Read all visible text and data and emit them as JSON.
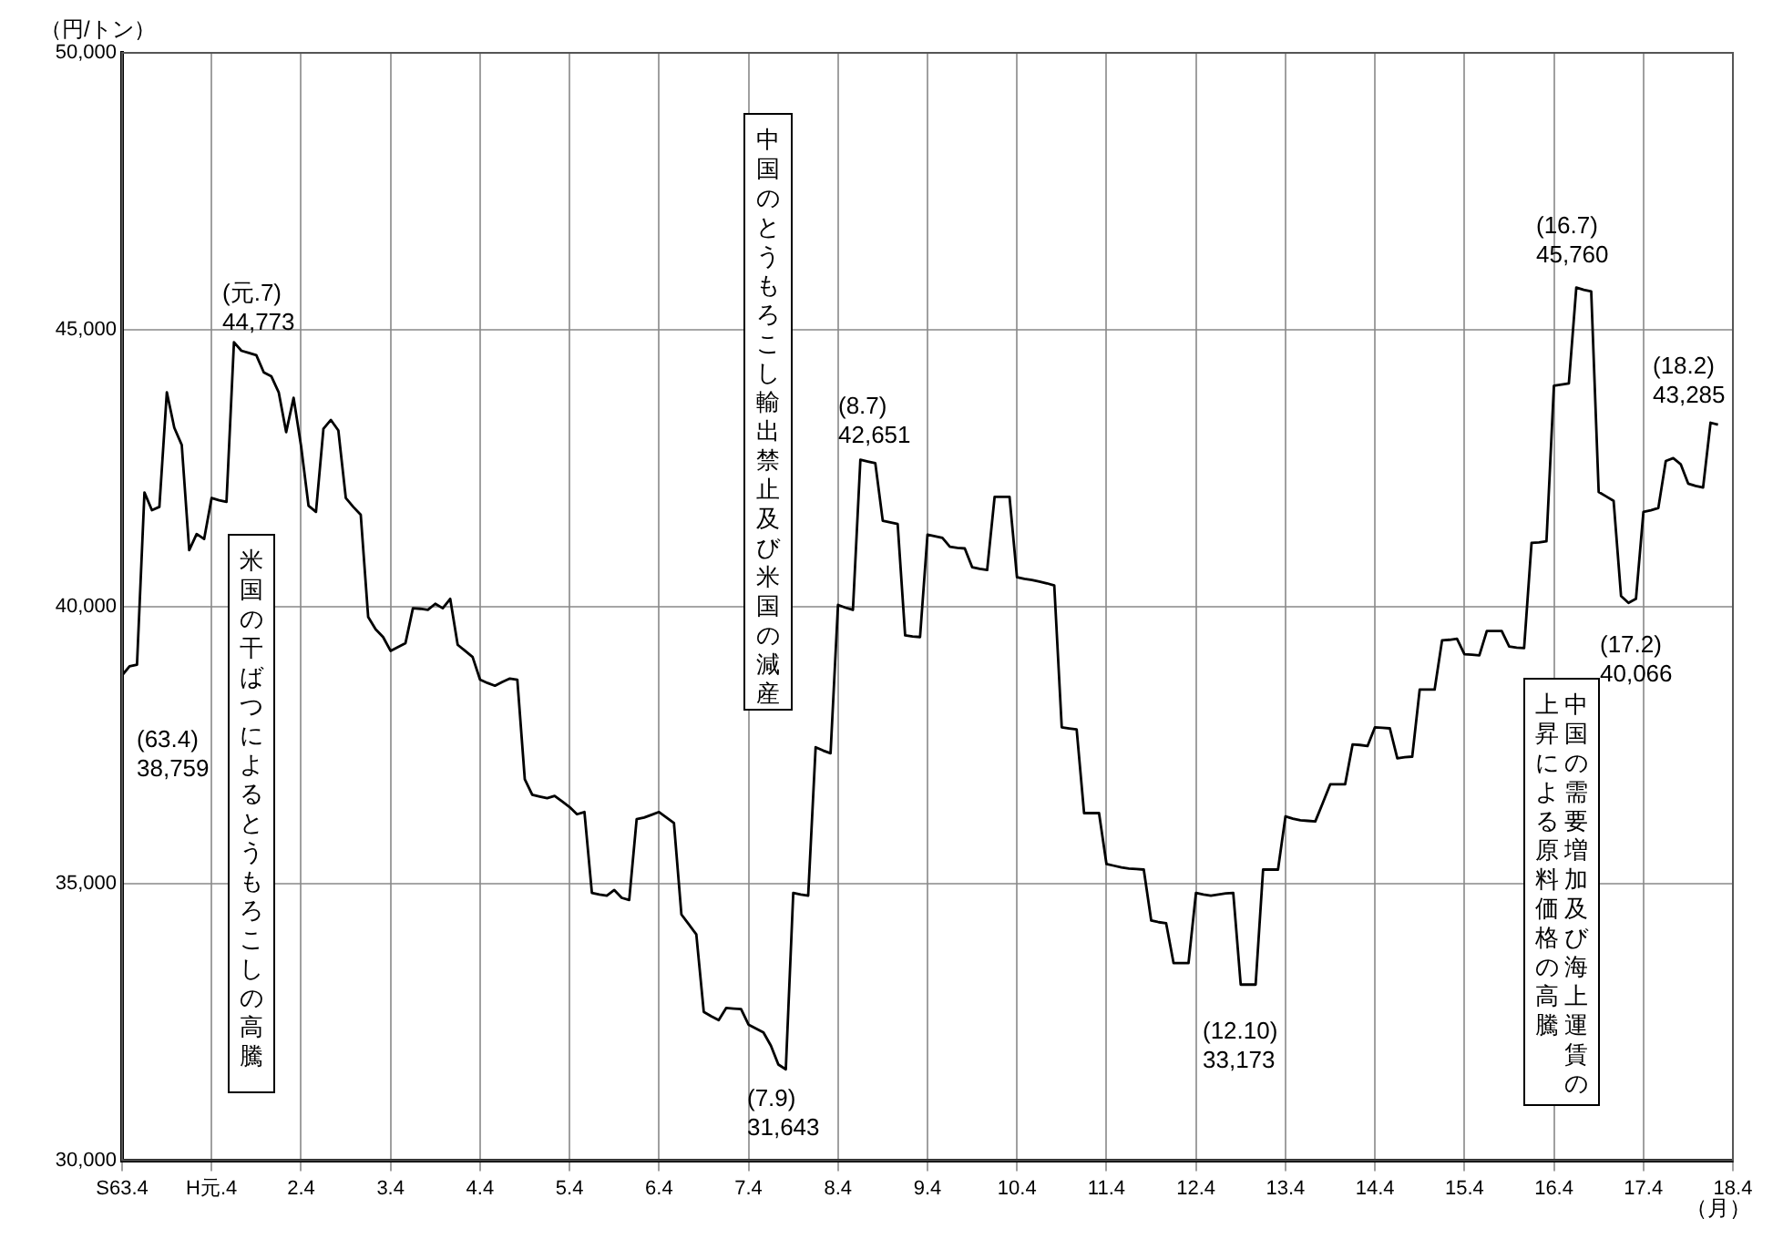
{
  "chart_data": {
    "type": "line",
    "ylabel": "（円/トン）",
    "xlabel": "（月）",
    "categories": [
      "S63.4",
      null,
      null,
      null,
      null,
      null,
      null,
      null,
      null,
      null,
      null,
      null,
      "H元.4",
      null,
      null,
      null,
      null,
      null,
      null,
      null,
      null,
      null,
      null,
      null,
      "2.4",
      null,
      null,
      null,
      null,
      null,
      null,
      null,
      null,
      null,
      null,
      null,
      "3.4",
      null,
      null,
      null,
      null,
      null,
      null,
      null,
      null,
      null,
      null,
      null,
      "4.4",
      null,
      null,
      null,
      null,
      null,
      null,
      null,
      null,
      null,
      null,
      null,
      "5.4",
      null,
      null,
      null,
      null,
      null,
      null,
      null,
      null,
      null,
      null,
      null,
      "6.4",
      null,
      null,
      null,
      null,
      null,
      null,
      null,
      null,
      null,
      null,
      null,
      "7.4",
      null,
      null,
      null,
      null,
      null,
      null,
      null,
      null,
      null,
      null,
      null,
      "8.4",
      null,
      null,
      null,
      null,
      null,
      null,
      null,
      null,
      null,
      null,
      null,
      "9.4",
      null,
      null,
      null,
      null,
      null,
      null,
      null,
      null,
      null,
      null,
      null,
      "10.4",
      null,
      null,
      null,
      null,
      null,
      null,
      null,
      null,
      null,
      null,
      null,
      "11.4",
      null,
      null,
      null,
      null,
      null,
      null,
      null,
      null,
      null,
      null,
      null,
      "12.4",
      null,
      null,
      null,
      null,
      null,
      null,
      null,
      null,
      null,
      null,
      null,
      "13.4",
      null,
      null,
      null,
      null,
      null,
      null,
      null,
      null,
      null,
      null,
      null,
      "14.4",
      null,
      null,
      null,
      null,
      null,
      null,
      null,
      null,
      null,
      null,
      null,
      "15.4",
      null,
      null,
      null,
      null,
      null,
      null,
      null,
      null,
      null,
      null,
      null,
      "16.4",
      null,
      null,
      null,
      null,
      null,
      null,
      null,
      null,
      null,
      null,
      null,
      "17.4",
      null,
      null,
      null,
      null,
      null,
      null,
      null,
      null,
      null,
      null,
      null,
      "18.4"
    ],
    "values": [
      38759,
      38920,
      38950,
      42060,
      41740,
      41800,
      43870,
      43230,
      42920,
      41020,
      41310,
      41220,
      41960,
      41920,
      41890,
      44773,
      44620,
      44580,
      44540,
      44230,
      44160,
      43870,
      43150,
      43770,
      42900,
      41820,
      41710,
      43210,
      43370,
      43180,
      41960,
      41800,
      41660,
      39810,
      39590,
      39450,
      39200,
      39270,
      39340,
      39970,
      39960,
      39940,
      40050,
      39970,
      40140,
      39310,
      39200,
      39090,
      38680,
      38620,
      38570,
      38640,
      38700,
      38680,
      36880,
      36600,
      36570,
      36540,
      36580,
      36480,
      36380,
      36250,
      36290,
      34830,
      34800,
      34780,
      34880,
      34740,
      34700,
      36160,
      36190,
      36240,
      36290,
      36190,
      36090,
      34440,
      34260,
      34080,
      32680,
      32600,
      32530,
      32750,
      32740,
      32730,
      32450,
      32380,
      32310,
      32070,
      31730,
      31643,
      34830,
      34800,
      34780,
      37460,
      37400,
      37350,
      40030,
      39980,
      39940,
      42651,
      42620,
      42590,
      41550,
      41520,
      41490,
      39480,
      39460,
      39450,
      41300,
      41270,
      41240,
      41080,
      41060,
      41050,
      40710,
      40680,
      40660,
      41980,
      41980,
      41980,
      40530,
      40500,
      40480,
      40450,
      40420,
      40380,
      37820,
      37800,
      37780,
      36270,
      36270,
      36270,
      35350,
      35320,
      35290,
      35270,
      35260,
      35250,
      34330,
      34300,
      34280,
      33560,
      33560,
      33560,
      34830,
      34800,
      34780,
      34800,
      34820,
      34830,
      33173,
      33173,
      33173,
      35250,
      35250,
      35250,
      36210,
      36170,
      36140,
      36130,
      36120,
      36450,
      36790,
      36790,
      36790,
      37510,
      37500,
      37480,
      37820,
      37810,
      37800,
      37260,
      37280,
      37290,
      38500,
      38500,
      38500,
      39390,
      39400,
      39420,
      39140,
      39130,
      39120,
      39560,
      39560,
      39560,
      39280,
      39260,
      39250,
      41150,
      41160,
      41180,
      43990,
      44010,
      44030,
      45760,
      45720,
      45690,
      42070,
      41990,
      41910,
      40190,
      40066,
      40140,
      41710,
      41740,
      41780,
      42630,
      42680,
      42570,
      42220,
      42180,
      42150,
      43320,
      43285,
      null,
      null
    ],
    "color": "#000000",
    "marker": "none",
    "line_style": "solid",
    "grid": true,
    "legend": false,
    "ylim": [
      30000,
      50000
    ],
    "yticks": [
      {
        "value": 30000,
        "label": "30,000"
      },
      {
        "value": 35000,
        "label": "35,000"
      },
      {
        "value": 40000,
        "label": "40,000"
      },
      {
        "value": 45000,
        "label": "45,000"
      },
      {
        "value": 50000,
        "label": "50,000"
      }
    ],
    "annotations": [
      "(63.4)\n38,759",
      "(元.7)\n44,773",
      "(7.9)\n31,643",
      "(8.7)\n42,651",
      "(12.10)\n33,173",
      "(16.7)\n45,760",
      "(17.2)\n40,066",
      "(18.2)\n43,285",
      "米国の干ばつによるとうもろこしの高騰",
      "中国のとうもろこし輸出禁止及び米国の減産",
      "中国の需要増加及び海上運賃の",
      "上昇による原料価格の高騰"
    ]
  }
}
